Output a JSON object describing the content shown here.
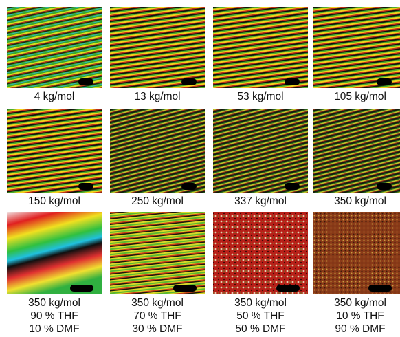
{
  "panels": [
    {
      "lines": [
        "4 kg/mol"
      ]
    },
    {
      "lines": [
        "13 kg/mol"
      ]
    },
    {
      "lines": [
        "53 kg/mol"
      ]
    },
    {
      "lines": [
        "105 kg/mol"
      ]
    },
    {
      "lines": [
        "150 kg/mol"
      ]
    },
    {
      "lines": [
        "250 kg/mol"
      ]
    },
    {
      "lines": [
        "337 kg/mol"
      ]
    },
    {
      "lines": [
        "350 kg/mol"
      ]
    },
    {
      "lines": [
        "350 kg/mol",
        "90 % THF",
        "10 % DMF"
      ]
    },
    {
      "lines": [
        "350 kg/mol",
        "70 % THF",
        "30 % DMF"
      ]
    },
    {
      "lines": [
        "350 kg/mol",
        "50 % THF",
        "50 % DMF"
      ]
    },
    {
      "lines": [
        "350 kg/mol",
        "10 % THF",
        "90 % DMF"
      ]
    }
  ]
}
